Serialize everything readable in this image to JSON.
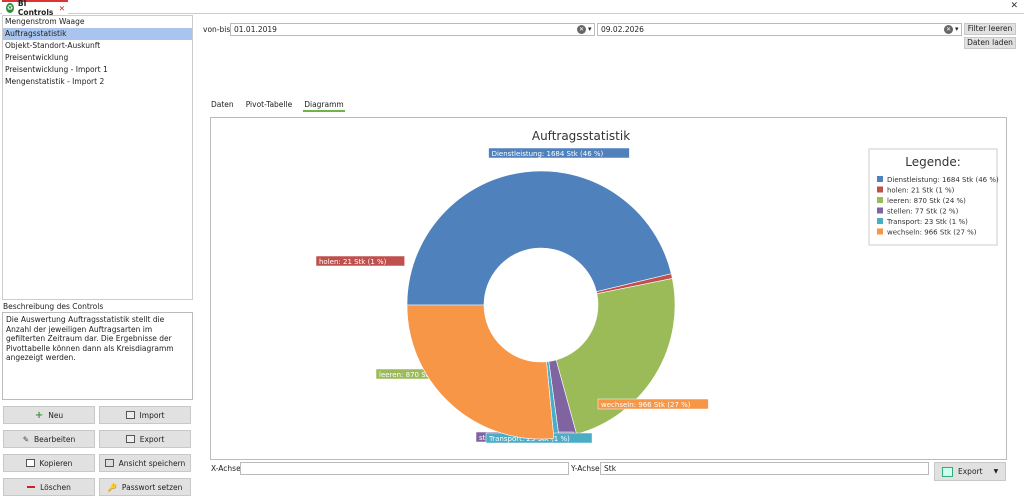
{
  "tab": {
    "title": "BI Controls"
  },
  "list": {
    "items": [
      {
        "label": "Mengenstrom Waage",
        "selected": false
      },
      {
        "label": "Auftragsstatistik",
        "selected": true
      },
      {
        "label": "Objekt-Standort-Auskunft",
        "selected": false
      },
      {
        "label": "Preisentwicklung",
        "selected": false
      },
      {
        "label": "Preisentwicklung - Import 1",
        "selected": false
      },
      {
        "label": "Mengenstatistik - Import 2",
        "selected": false
      }
    ]
  },
  "description": {
    "label": "Beschreibung des Controls",
    "text": "Die Auswertung Auftragsstatistik stellt die Anzahl der jeweiligen Auftragsarten im gefilterten Zeitraum dar. Die Ergebnisse der Pivottabelle können dann als Kreisdiagramm angezeigt werden."
  },
  "buttons": {
    "neu": "Neu",
    "import": "Import",
    "bearbeiten": "Bearbeiten",
    "export": "Export",
    "kopieren": "Kopieren",
    "ansicht": "Ansicht speichern",
    "loeschen": "Löschen",
    "passwort": "Passwort setzen"
  },
  "filter": {
    "label": "von-bis:",
    "from": "01.01.2019",
    "to": "09.02.2026",
    "clear_label": "Filter leeren",
    "load_label": "Daten laden"
  },
  "content_tabs": [
    {
      "label": "Daten",
      "active": false
    },
    {
      "label": "Pivot-Tabelle",
      "active": false
    },
    {
      "label": "Diagramm",
      "active": true
    }
  ],
  "chart_data": {
    "type": "pie",
    "title": "Auftragsstatistik",
    "legend_title": "Legende:",
    "legend_position": "top-right",
    "slices": [
      {
        "name": "Dienstleistung",
        "value": 1684,
        "label": "Dienstleistung: 1684 Stk (46 %)",
        "color": "#4f81bd"
      },
      {
        "name": "holen",
        "value": 21,
        "label": "holen: 21 Stk (1 %)",
        "color": "#c0504d"
      },
      {
        "name": "leeren",
        "value": 870,
        "label": "leeren: 870 Stk (24 %)",
        "color": "#9bbb59"
      },
      {
        "name": "stellen",
        "value": 77,
        "label": "stellen: 77 Stk (2 %)",
        "color": "#8064a2"
      },
      {
        "name": "Transport",
        "value": 23,
        "label": "Transport: 23 Stk (1 %)",
        "color": "#4bacc6"
      },
      {
        "name": "wechseln",
        "value": 966,
        "label": "wechseln: 966 Stk (27 %)",
        "color": "#f79646"
      }
    ]
  },
  "axes": {
    "x_label": "X-Achse",
    "x_value": "",
    "y_label": "Y-Achse",
    "y_value": "Stk"
  },
  "export_label": "Export"
}
